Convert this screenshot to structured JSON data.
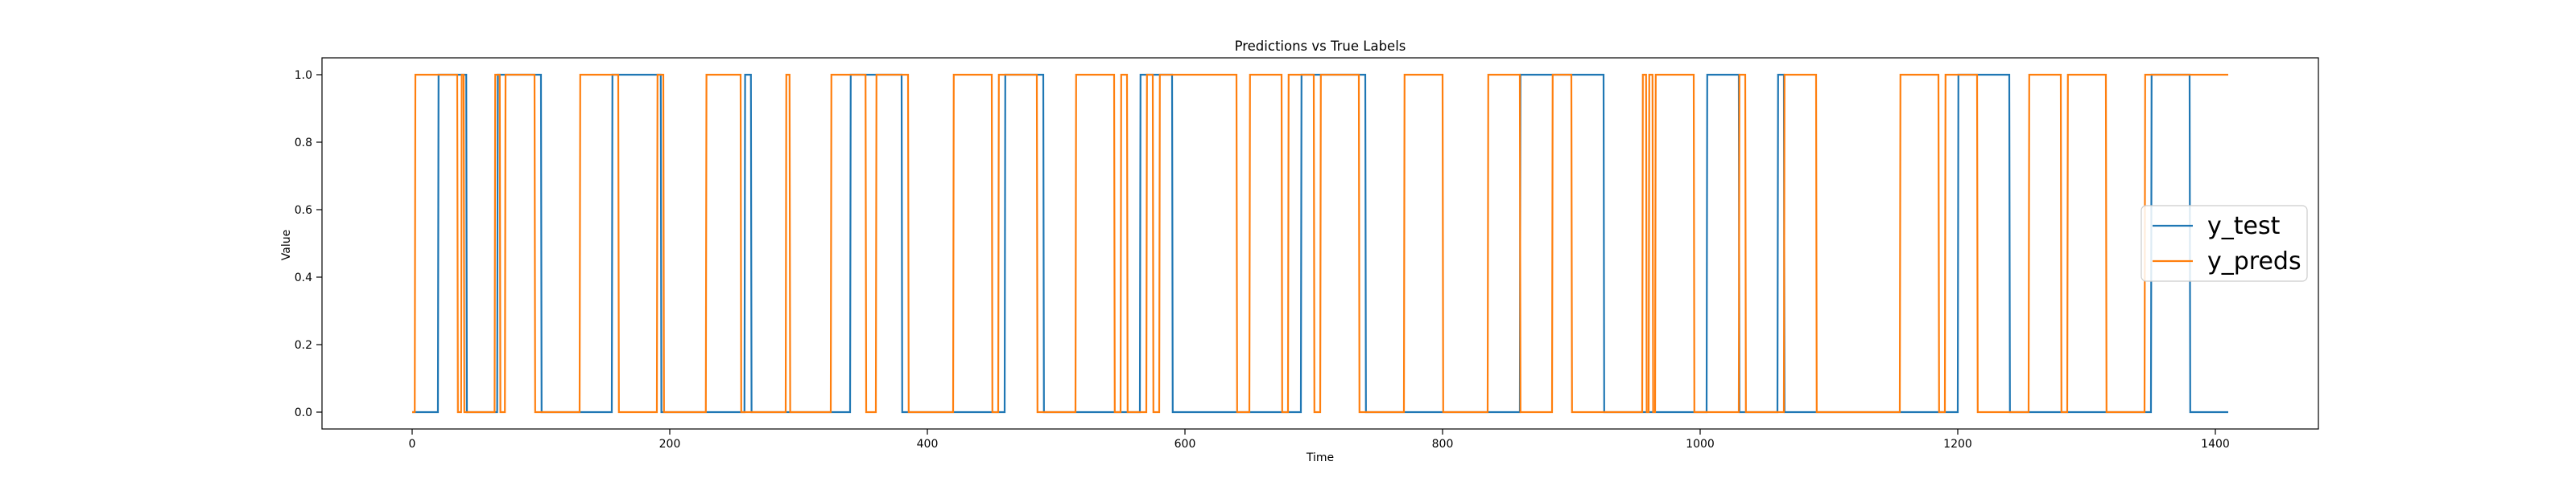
{
  "chart_data": {
    "type": "line",
    "title": "Predictions vs True Labels",
    "xlabel": "Time",
    "ylabel": "Value",
    "xlim": [
      -70,
      1480
    ],
    "ylim": [
      -0.05,
      1.05
    ],
    "xticks": [
      0,
      200,
      400,
      600,
      800,
      1000,
      1200,
      1400
    ],
    "yticks": [
      0.0,
      0.2,
      0.4,
      0.6,
      0.8,
      1.0
    ],
    "grid": false,
    "legend": "center-right",
    "series": [
      {
        "name": "y_test",
        "color": "#1f77b4",
        "intervals_high": [
          [
            20,
            42
          ],
          [
            66,
            100
          ],
          [
            155,
            193
          ],
          [
            258,
            263
          ],
          [
            340,
            380
          ],
          [
            460,
            490
          ],
          [
            565,
            590
          ],
          [
            690,
            740
          ],
          [
            860,
            925
          ],
          [
            1005,
            1030
          ],
          [
            1060,
            1065
          ],
          [
            1200,
            1240
          ],
          [
            1350,
            1380
          ]
        ],
        "x_range": [
          0,
          1410
        ]
      },
      {
        "name": "y_preds",
        "color": "#ff7f0e",
        "intervals_high": [
          [
            2,
            35
          ],
          [
            38,
            40
          ],
          [
            64,
            68
          ],
          [
            72,
            95
          ],
          [
            130,
            160
          ],
          [
            190,
            195
          ],
          [
            228,
            255
          ],
          [
            290,
            293
          ],
          [
            325,
            352
          ],
          [
            360,
            385
          ],
          [
            420,
            450
          ],
          [
            455,
            485
          ],
          [
            515,
            545
          ],
          [
            550,
            555
          ],
          [
            570,
            575
          ],
          [
            580,
            640
          ],
          [
            650,
            675
          ],
          [
            680,
            700
          ],
          [
            705,
            735
          ],
          [
            770,
            800
          ],
          [
            835,
            860
          ],
          [
            885,
            900
          ],
          [
            955,
            958
          ],
          [
            960,
            963
          ],
          [
            965,
            995
          ],
          [
            1030,
            1035
          ],
          [
            1065,
            1090
          ],
          [
            1155,
            1185
          ],
          [
            1190,
            1215
          ],
          [
            1255,
            1280
          ],
          [
            1285,
            1315
          ],
          [
            1345,
            1410
          ]
        ],
        "x_range": [
          0,
          1410
        ]
      }
    ]
  }
}
